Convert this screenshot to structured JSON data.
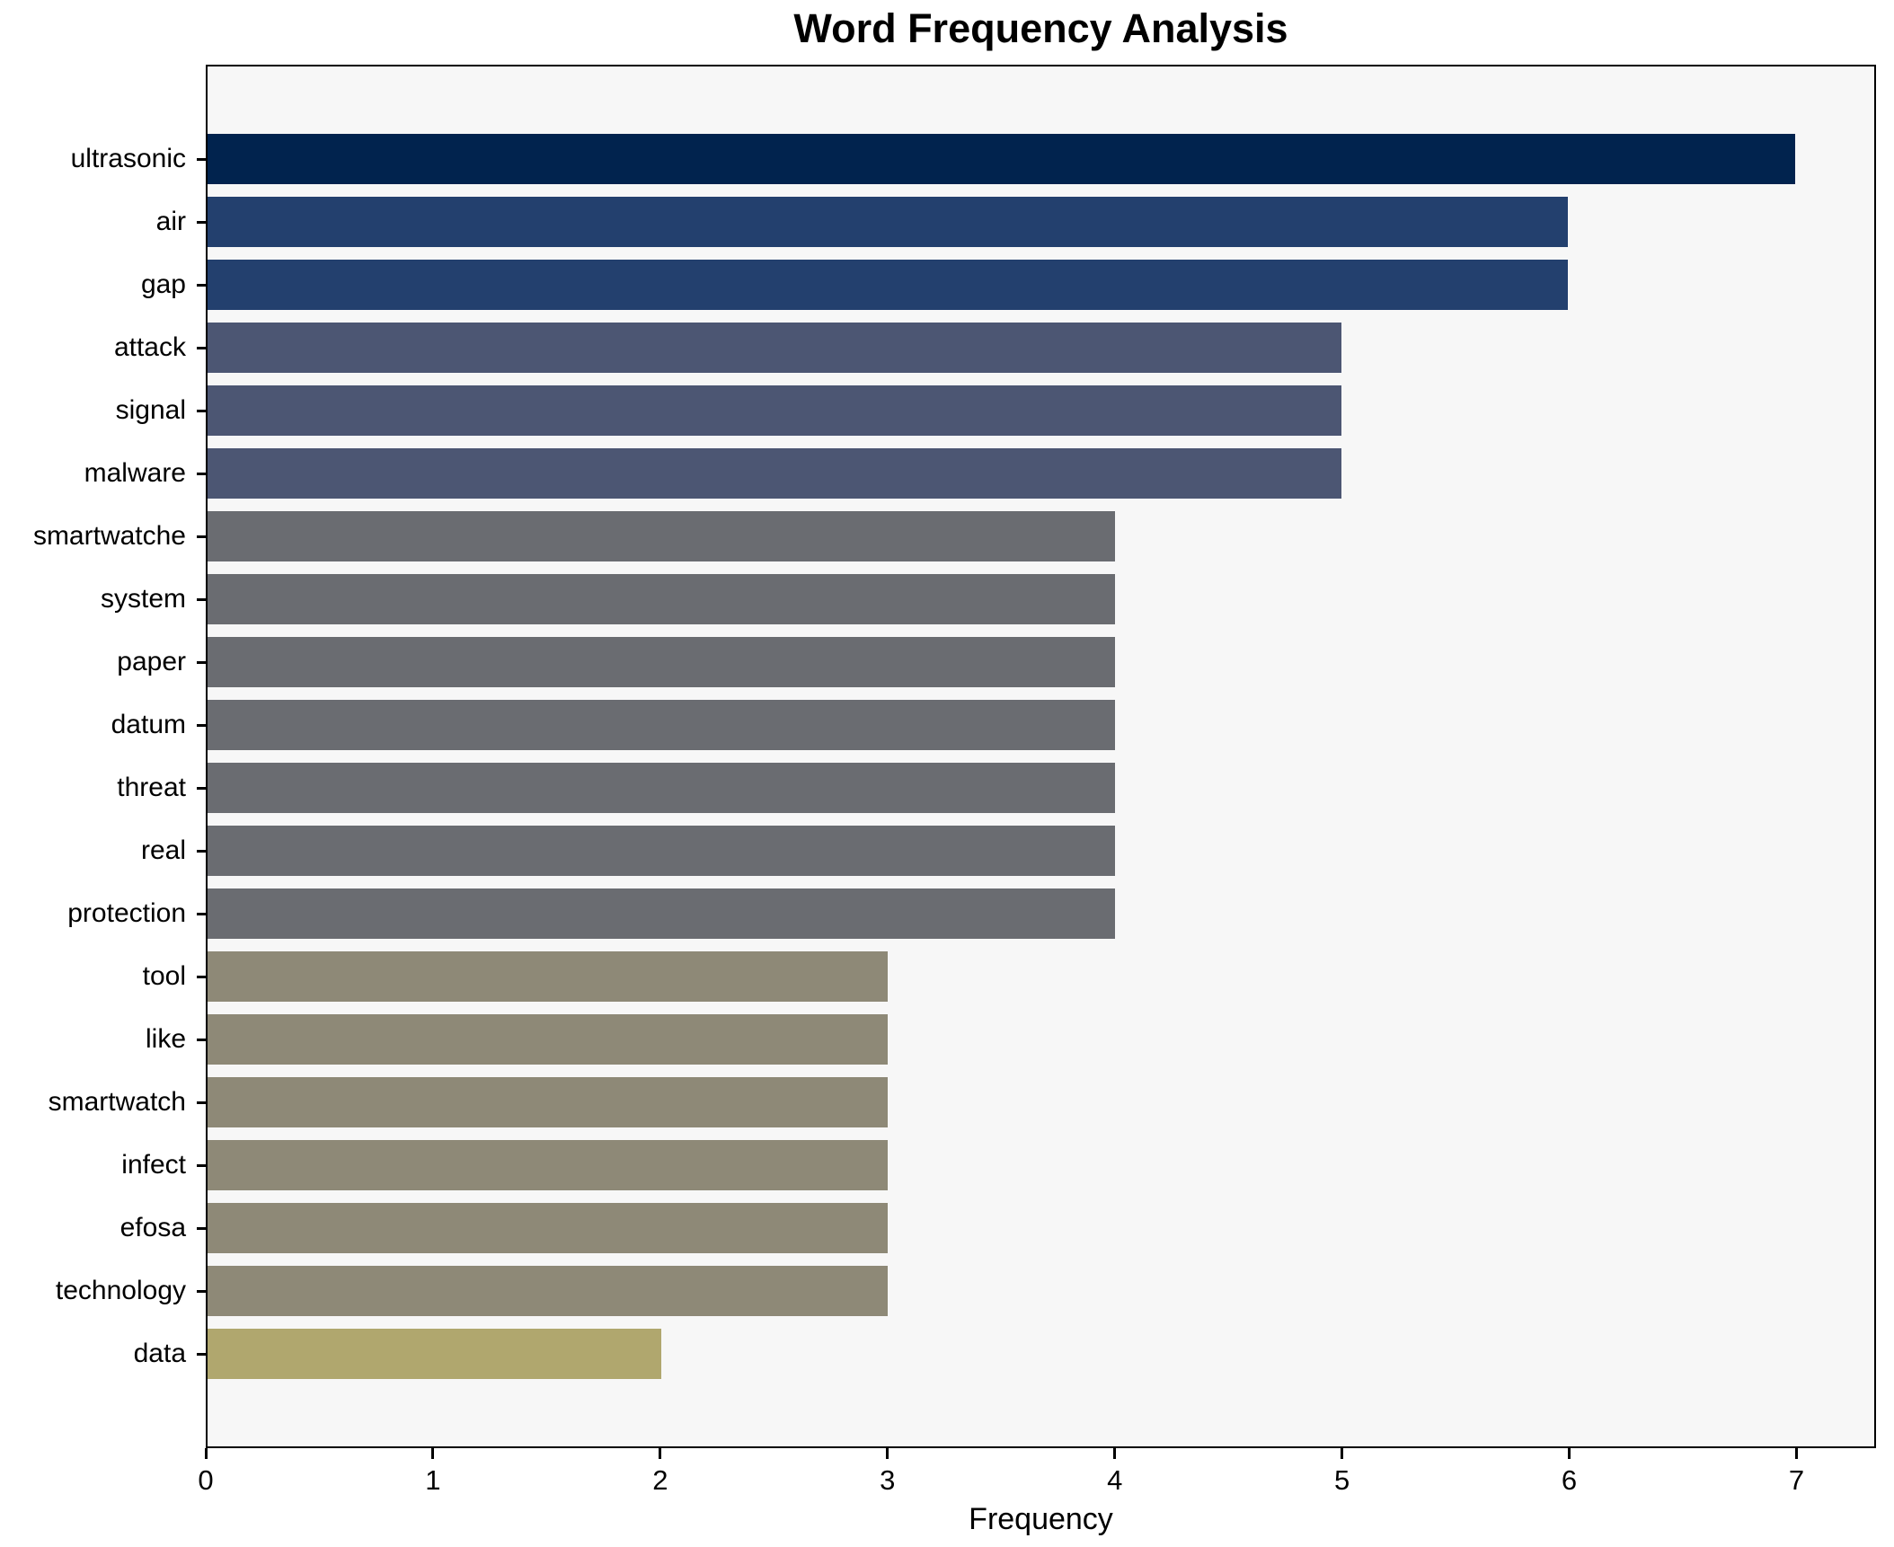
{
  "title": "Word Frequency Analysis",
  "chart_data": {
    "type": "bar",
    "orientation": "horizontal",
    "title": "Word Frequency Analysis",
    "xlabel": "Frequency",
    "ylabel": "",
    "categories": [
      "ultrasonic",
      "air",
      "gap",
      "attack",
      "signal",
      "malware",
      "smartwatche",
      "system",
      "paper",
      "datum",
      "threat",
      "real",
      "protection",
      "tool",
      "like",
      "smartwatch",
      "infect",
      "efosa",
      "technology",
      "data"
    ],
    "values": [
      7,
      6,
      6,
      5,
      5,
      5,
      4,
      4,
      4,
      4,
      4,
      4,
      4,
      3,
      3,
      3,
      3,
      3,
      3,
      2
    ],
    "bar_colors": [
      "#01234e",
      "#23406e",
      "#23406e",
      "#4c5673",
      "#4c5673",
      "#4c5673",
      "#6a6c71",
      "#6a6c71",
      "#6a6c71",
      "#6a6c71",
      "#6a6c71",
      "#6a6c71",
      "#6a6c71",
      "#8e8977",
      "#8e8977",
      "#8e8977",
      "#8e8977",
      "#8e8977",
      "#8e8977",
      "#b0a76e"
    ],
    "xlim": [
      0,
      7.35
    ],
    "xticks": [
      "0",
      "1",
      "2",
      "3",
      "4",
      "5",
      "6",
      "7"
    ],
    "grid": false,
    "legend": false,
    "plot_bg": "#f7f7f7",
    "fig_bg": "#ffffff",
    "spine_color": "#000000"
  }
}
